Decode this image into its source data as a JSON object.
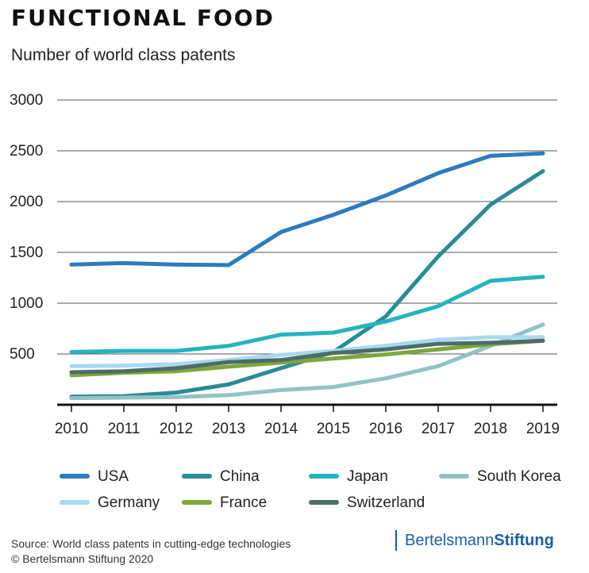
{
  "header": {
    "title": "FUNCTIONAL FOOD",
    "subtitle": "Number of world class patents"
  },
  "footer": {
    "source_line1": "Source: World class patents in cutting-edge technologies",
    "source_line2": "© Bertelsmann Stiftung 2020",
    "logo_part1": "Bertelsmann",
    "logo_part2": "Stiftung"
  },
  "chart_data": {
    "type": "line",
    "title": "FUNCTIONAL FOOD",
    "subtitle": "Number of world class patents",
    "xlabel": "",
    "ylabel": "",
    "x": [
      "2010",
      "2011",
      "2012",
      "2013",
      "2014",
      "2015",
      "2016",
      "2017",
      "2018",
      "2019"
    ],
    "ylim": [
      0,
      3000
    ],
    "yticks": [
      500,
      1000,
      1500,
      2000,
      2500,
      3000
    ],
    "grid": true,
    "legend_position": "bottom",
    "series": [
      {
        "name": "USA",
        "color": "#2b7bc0",
        "values": [
          1380,
          1395,
          1380,
          1375,
          1700,
          1870,
          2060,
          2280,
          2450,
          2475
        ]
      },
      {
        "name": "China",
        "color": "#2a8a96",
        "values": [
          80,
          85,
          120,
          200,
          360,
          520,
          870,
          1460,
          1970,
          2300
        ]
      },
      {
        "name": "Japan",
        "color": "#23b3c1",
        "values": [
          520,
          530,
          530,
          580,
          690,
          710,
          820,
          970,
          1220,
          1260
        ]
      },
      {
        "name": "South Korea",
        "color": "#93c2c6",
        "values": [
          65,
          70,
          75,
          95,
          145,
          175,
          260,
          380,
          580,
          790
        ]
      },
      {
        "name": "Germany",
        "color": "#a9d8f1",
        "values": [
          380,
          385,
          400,
          440,
          490,
          530,
          580,
          640,
          665,
          665
        ]
      },
      {
        "name": "France",
        "color": "#7da63b",
        "values": [
          290,
          315,
          330,
          375,
          415,
          455,
          495,
          545,
          595,
          630
        ]
      },
      {
        "name": "Switzerland",
        "color": "#4c6d66",
        "values": [
          320,
          330,
          360,
          420,
          440,
          510,
          545,
          600,
          610,
          630
        ]
      }
    ]
  }
}
